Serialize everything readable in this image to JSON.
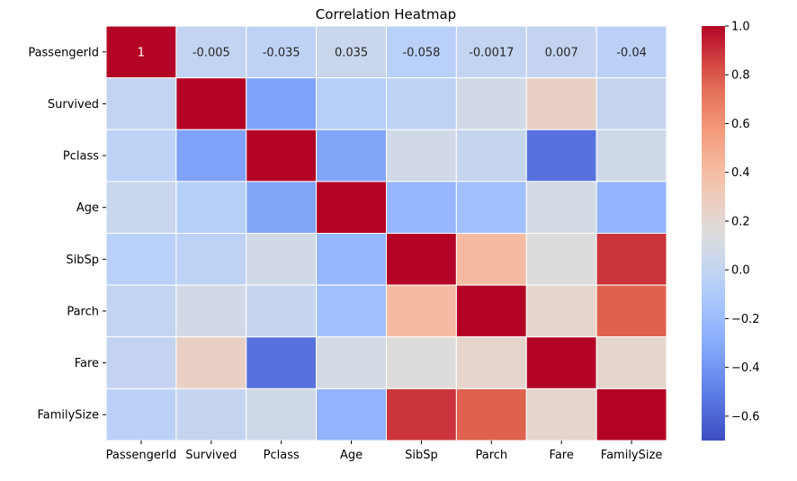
{
  "chart_data": {
    "type": "heatmap",
    "title": "Correlation Heatmap",
    "xlabel": "",
    "ylabel": "",
    "row_labels": [
      "PassengerId",
      "Survived",
      "Pclass",
      "Age",
      "SibSp",
      "Parch",
      "Fare",
      "FamilySize"
    ],
    "col_labels": [
      "PassengerId",
      "Survived",
      "Pclass",
      "Age",
      "SibSp",
      "Parch",
      "Fare",
      "FamilySize"
    ],
    "values": [
      [
        1,
        -0.005,
        -0.035,
        0.035,
        -0.058,
        -0.0017,
        0.007,
        -0.04
      ],
      [
        -0.005,
        1,
        -0.34,
        -0.07,
        -0.035,
        0.08,
        0.26,
        0.017
      ],
      [
        -0.035,
        -0.34,
        1,
        -0.33,
        0.083,
        0.018,
        -0.55,
        0.066
      ],
      [
        0.035,
        -0.07,
        -0.33,
        1,
        -0.23,
        -0.17,
        0.1,
        -0.25
      ],
      [
        -0.058,
        -0.035,
        0.083,
        -0.23,
        1,
        0.41,
        0.16,
        0.89
      ],
      [
        -0.0017,
        0.08,
        0.018,
        -0.17,
        0.41,
        1,
        0.22,
        0.78
      ],
      [
        0.007,
        0.26,
        -0.55,
        0.1,
        0.16,
        0.22,
        1,
        0.22
      ],
      [
        -0.04,
        0.017,
        0.066,
        -0.25,
        0.89,
        0.78,
        0.22,
        1
      ]
    ],
    "annotations": [
      [
        "1",
        "-0.005",
        "-0.035",
        "0.035",
        "-0.058",
        "-0.0017",
        "0.007",
        "-0.04"
      ]
    ],
    "colorbar": {
      "vmin": -0.7,
      "vmax": 1.0,
      "ticks": [
        1.0,
        0.8,
        0.6,
        0.4,
        0.2,
        0.0,
        -0.2,
        -0.4,
        -0.6
      ],
      "tick_labels": [
        "1.0",
        "0.8",
        "0.6",
        "0.4",
        "0.2",
        "0.0",
        "−0.2",
        "−0.4",
        "−0.6"
      ]
    },
    "colormap": "coolwarm",
    "colors": {
      "low": "#3b4cc0",
      "mid": "#dddcdc",
      "high": "#b40426",
      "gridline": "#ffffff"
    },
    "grid": false,
    "legend": "colorbar-right"
  }
}
